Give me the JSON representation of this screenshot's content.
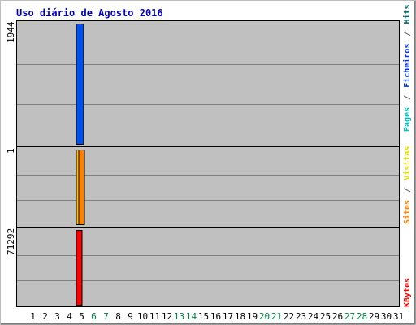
{
  "chart_data": [
    {
      "type": "bar",
      "title": "Uso diário de Agosto 2016",
      "categories": [
        "1",
        "2",
        "3",
        "4",
        "5",
        "6",
        "7",
        "8",
        "9",
        "10",
        "11",
        "12",
        "13",
        "14",
        "15",
        "16",
        "17",
        "18",
        "19",
        "20",
        "21",
        "22",
        "23",
        "24",
        "25",
        "26",
        "27",
        "28",
        "29",
        "30",
        "31"
      ],
      "weekend_days": [
        "6",
        "7",
        "13",
        "14",
        "20",
        "21",
        "27",
        "28"
      ],
      "ymax_label": "1944",
      "ylim": [
        0,
        1944
      ],
      "legend": [
        {
          "label": "Pages",
          "color": "#00c0c0"
        },
        {
          "label": "/",
          "color": "#606060"
        },
        {
          "label": "Ficheiros",
          "color": "#0030f0"
        },
        {
          "label": "/",
          "color": "#606060"
        },
        {
          "label": "Hits",
          "color": "#006060"
        }
      ],
      "series": [
        {
          "name": "Hits",
          "color": "#0050f0",
          "values": [
            0,
            0,
            0,
            0,
            1944,
            0,
            0,
            0,
            0,
            0,
            0,
            0,
            0,
            0,
            0,
            0,
            0,
            0,
            0,
            0,
            0,
            0,
            0,
            0,
            0,
            0,
            0,
            0,
            0,
            0,
            0
          ]
        },
        {
          "name": "Ficheiros",
          "color": "#0050f0",
          "values": [
            0,
            0,
            0,
            0,
            1,
            0,
            0,
            0,
            0,
            0,
            0,
            0,
            0,
            0,
            0,
            0,
            0,
            0,
            0,
            0,
            0,
            0,
            0,
            0,
            0,
            0,
            0,
            0,
            0,
            0,
            0
          ]
        },
        {
          "name": "Pages",
          "color": "#00c0c0",
          "values": [
            0,
            0,
            0,
            0,
            1,
            0,
            0,
            0,
            0,
            0,
            0,
            0,
            0,
            0,
            0,
            0,
            0,
            0,
            0,
            0,
            0,
            0,
            0,
            0,
            0,
            0,
            0,
            0,
            0,
            0,
            0
          ]
        }
      ]
    },
    {
      "type": "bar",
      "ymax_label": "1",
      "ylim": [
        0,
        1
      ],
      "legend": [
        {
          "label": "Sites",
          "color": "#ff8000"
        },
        {
          "label": "/",
          "color": "#606060"
        },
        {
          "label": "Visitas",
          "color": "#e0e000"
        }
      ],
      "series": [
        {
          "name": "Visitas",
          "color": "#ffc000",
          "values": [
            0,
            0,
            0,
            0,
            1,
            0,
            0,
            0,
            0,
            0,
            0,
            0,
            0,
            0,
            0,
            0,
            0,
            0,
            0,
            0,
            0,
            0,
            0,
            0,
            0,
            0,
            0,
            0,
            0,
            0,
            0
          ]
        },
        {
          "name": "Sites",
          "color": "#ff8000",
          "values": [
            0,
            0,
            0,
            0,
            1,
            0,
            0,
            0,
            0,
            0,
            0,
            0,
            0,
            0,
            0,
            0,
            0,
            0,
            0,
            0,
            0,
            0,
            0,
            0,
            0,
            0,
            0,
            0,
            0,
            0,
            0
          ]
        }
      ]
    },
    {
      "type": "bar",
      "ymax_label": "71292",
      "ylim": [
        0,
        71292
      ],
      "legend": [
        {
          "label": "KBytes",
          "color": "#ff0000"
        }
      ],
      "series": [
        {
          "name": "KBytes",
          "color": "#ff0000",
          "values": [
            0,
            0,
            0,
            0,
            71292,
            0,
            0,
            0,
            0,
            0,
            0,
            0,
            0,
            0,
            0,
            0,
            0,
            0,
            0,
            0,
            0,
            0,
            0,
            0,
            0,
            0,
            0,
            0,
            0,
            0,
            0
          ]
        }
      ]
    }
  ]
}
